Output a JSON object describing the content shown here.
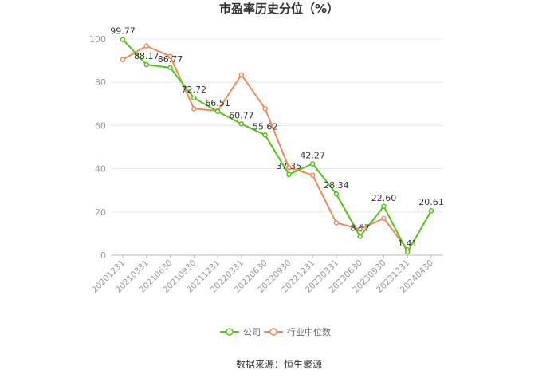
{
  "chart_data": {
    "type": "line",
    "title": "市盈率历史分位（%）",
    "x": [
      "20201231",
      "20210331",
      "20210630",
      "20210930",
      "20211231",
      "20220331",
      "20220630",
      "20220930",
      "20221231",
      "20230331",
      "20230630",
      "20230930",
      "20231231",
      "20240430"
    ],
    "ylim": [
      0,
      100
    ],
    "yticks": [
      0,
      20,
      40,
      60,
      80,
      100
    ],
    "grid": true,
    "legend_position": "bottom",
    "series": [
      {
        "name": "公司",
        "color": "#52c41a",
        "values": [
          99.77,
          88.17,
          86.77,
          72.72,
          66.51,
          60.77,
          55.62,
          37.35,
          42.27,
          28.34,
          8.67,
          22.6,
          1.41,
          20.61
        ],
        "labels": [
          "99.77",
          "88.17",
          "86.77",
          "72.72",
          "66.51",
          "60.77",
          "55.62",
          "37.35",
          "42.27",
          "28.34",
          "8.67",
          "22.60",
          "1.41",
          "20.61"
        ]
      },
      {
        "name": "行业中位数",
        "color": "#f4875a",
        "values": [
          90.5,
          96.8,
          92.0,
          67.8,
          66.8,
          83.5,
          67.8,
          40.5,
          37.0,
          15.0,
          12.0,
          17.0,
          2.5,
          null
        ]
      }
    ],
    "source": "数据来源：恒生聚源"
  }
}
